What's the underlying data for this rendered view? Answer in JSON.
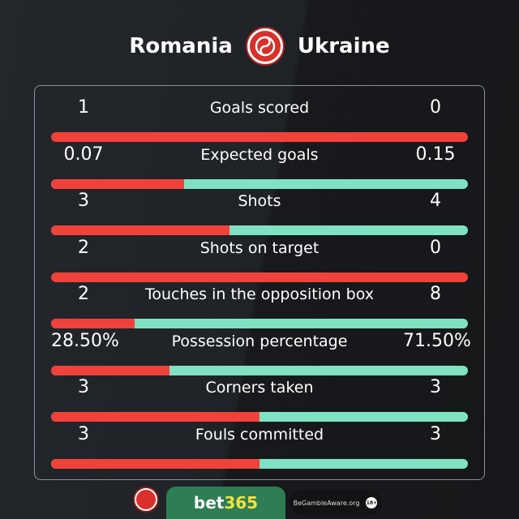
{
  "header": {
    "home_team": "Romania",
    "away_team": "Ukraine",
    "logo_icon": "brand-swirl-logo"
  },
  "colors": {
    "home": "#f0423a",
    "away": "#7fe2c2",
    "background": "#1f2327"
  },
  "stats": [
    {
      "label": "Goals scored",
      "home": "1",
      "away": "0",
      "home_value": 1,
      "away_value": 0
    },
    {
      "label": "Expected goals",
      "home": "0.07",
      "away": "0.15",
      "home_value": 0.07,
      "away_value": 0.15
    },
    {
      "label": "Shots",
      "home": "3",
      "away": "4",
      "home_value": 3,
      "away_value": 4
    },
    {
      "label": "Shots on target",
      "home": "2",
      "away": "0",
      "home_value": 2,
      "away_value": 0
    },
    {
      "label": "Touches in the opposition box",
      "home": "2",
      "away": "8",
      "home_value": 2,
      "away_value": 8
    },
    {
      "label": "Possession percentage",
      "home": "28.50%",
      "away": "71.50%",
      "home_value": 28.5,
      "away_value": 71.5
    },
    {
      "label": "Corners taken",
      "home": "3",
      "away": "3",
      "home_value": 3,
      "away_value": 3
    },
    {
      "label": "Fouls committed",
      "home": "3",
      "away": "3",
      "home_value": 3,
      "away_value": 3
    }
  ],
  "footer": {
    "sponsor_a": "bet",
    "sponsor_b": "365",
    "gamble_aware": "BeGambleAware.org",
    "age": "18+"
  }
}
